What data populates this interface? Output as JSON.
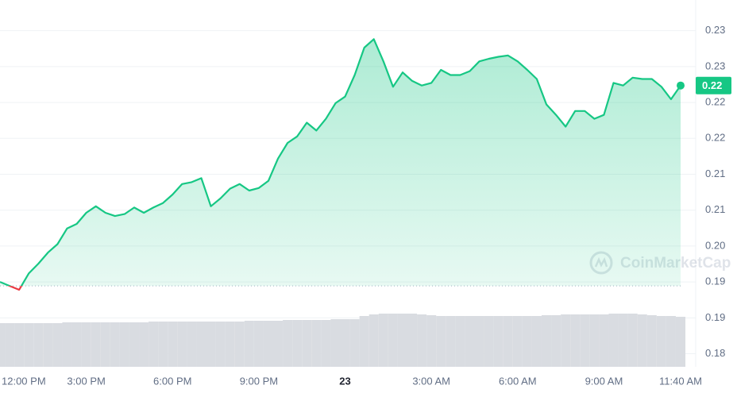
{
  "chart_data": {
    "type": "line",
    "categories": [
      "12:00 PM",
      null,
      null,
      null,
      null,
      null,
      null,
      null,
      null,
      "3:00 PM",
      null,
      null,
      null,
      null,
      null,
      null,
      null,
      null,
      "6:00 PM",
      null,
      null,
      null,
      null,
      null,
      null,
      null,
      null,
      "9:00 PM",
      null,
      null,
      null,
      null,
      null,
      null,
      null,
      null,
      "23",
      null,
      null,
      null,
      null,
      null,
      null,
      null,
      null,
      "3:00 AM",
      null,
      null,
      null,
      null,
      null,
      null,
      null,
      null,
      "6:00 AM",
      null,
      null,
      null,
      null,
      null,
      null,
      null,
      null,
      "9:00 AM",
      null,
      null,
      null,
      null,
      null,
      null,
      null,
      "11:40 AM"
    ],
    "series": [
      {
        "color": "#16c784",
        "below_color": "#ea3943",
        "values": [
          0.1945,
          0.1939,
          0.1933,
          0.1958,
          0.1973,
          0.199,
          0.2003,
          0.2027,
          0.2034,
          0.2051,
          0.2061,
          0.2051,
          0.2046,
          0.2049,
          0.2059,
          0.2051,
          0.2059,
          0.2066,
          0.2079,
          0.2095,
          0.2098,
          0.2104,
          0.2061,
          0.2073,
          0.2088,
          0.2095,
          0.2085,
          0.2089,
          0.21,
          0.2134,
          0.2158,
          0.2168,
          0.2189,
          0.2177,
          0.2195,
          0.2219,
          0.2229,
          0.2262,
          0.2304,
          0.2317,
          0.2283,
          0.2244,
          0.2266,
          0.2253,
          0.2246,
          0.225,
          0.227,
          0.2262,
          0.2262,
          0.2268,
          0.2283,
          0.2287,
          0.229,
          0.2292,
          0.2283,
          0.227,
          0.2256,
          0.2217,
          0.2201,
          0.2183,
          0.2207,
          0.2207,
          0.2195,
          0.2201,
          0.225,
          0.2246,
          0.2258,
          0.2256,
          0.2256,
          0.2244,
          0.2225,
          0.2246
        ]
      }
    ],
    "volume": {
      "color": "#d9dce1",
      "values": [
        55,
        55,
        55,
        55,
        55,
        55,
        55,
        56,
        56,
        56,
        56,
        56,
        56,
        56,
        56,
        56,
        57,
        57,
        57,
        57,
        57,
        57,
        57,
        57,
        57,
        57,
        58,
        58,
        58,
        58,
        59,
        59,
        59,
        59,
        59,
        60,
        60,
        60,
        64,
        66,
        67,
        67,
        67,
        67,
        66,
        65,
        64,
        64,
        64,
        64,
        64,
        64,
        64,
        64,
        64,
        64,
        64,
        65,
        65,
        66,
        66,
        66,
        66,
        66,
        67,
        67,
        67,
        66,
        65,
        64,
        64,
        63
      ]
    },
    "baseline": 0.1939,
    "current_price": {
      "value": 0.2246,
      "label": "0.22"
    },
    "ylim": [
      0.1815,
      0.2377
    ],
    "yticks": [
      {
        "value": 0.233,
        "label": "0.23"
      },
      {
        "value": 0.2275,
        "label": "0.23"
      },
      {
        "value": 0.222,
        "label": "0.22"
      },
      {
        "value": 0.2165,
        "label": "0.22"
      },
      {
        "value": 0.211,
        "label": "0.21"
      },
      {
        "value": 0.2055,
        "label": "0.21"
      },
      {
        "value": 0.2,
        "label": "0.20"
      },
      {
        "value": 0.1945,
        "label": "0.19"
      },
      {
        "value": 0.189,
        "label": "0.19"
      },
      {
        "value": 0.1835,
        "label": "0.18"
      }
    ],
    "grid": true,
    "watermark": "CoinMarketCap"
  }
}
